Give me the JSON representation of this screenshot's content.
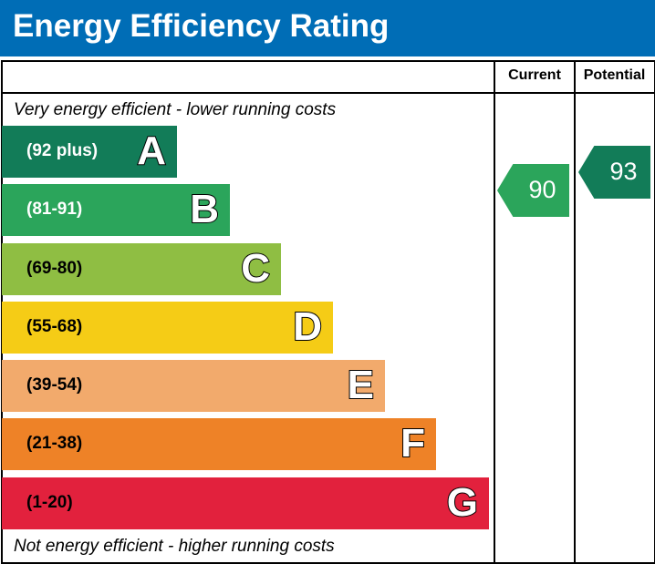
{
  "header": {
    "title": "Energy Efficiency Rating"
  },
  "columns": {
    "current": "Current",
    "potential": "Potential"
  },
  "notes": {
    "top": "Very energy efficient - lower running costs",
    "bottom": "Not energy efficient - higher running costs"
  },
  "chart_data": {
    "type": "bar",
    "title": "Energy Efficiency Rating",
    "bands": [
      {
        "letter": "A",
        "range": "(92 plus)",
        "color": "#127c58",
        "text_color": "#ffffff"
      },
      {
        "letter": "B",
        "range": "(81-91)",
        "color": "#2ba55b",
        "text_color": "#ffffff"
      },
      {
        "letter": "C",
        "range": "(69-80)",
        "color": "#8fbe43",
        "text_color": "#000000"
      },
      {
        "letter": "D",
        "range": "(55-68)",
        "color": "#f5cc16",
        "text_color": "#000000"
      },
      {
        "letter": "E",
        "range": "(39-54)",
        "color": "#f2aa6c",
        "text_color": "#000000"
      },
      {
        "letter": "F",
        "range": "(21-38)",
        "color": "#ee8227",
        "text_color": "#000000"
      },
      {
        "letter": "G",
        "range": "(1-20)",
        "color": "#e2213d",
        "text_color": "#000000"
      }
    ],
    "current": {
      "value": "90",
      "band": "B",
      "color": "#2ba55b"
    },
    "potential": {
      "value": "93",
      "band": "A",
      "color": "#127c58"
    }
  }
}
